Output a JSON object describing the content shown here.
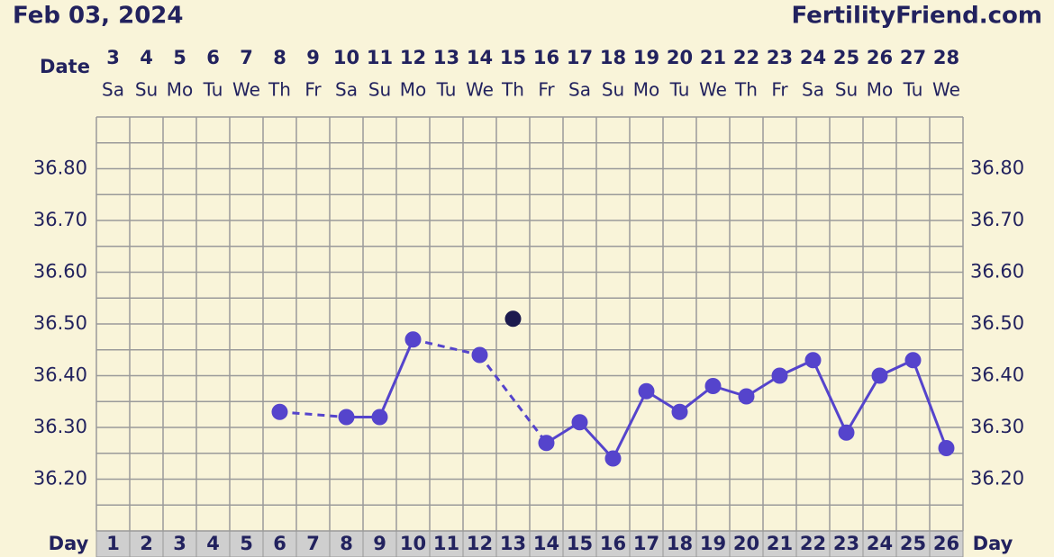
{
  "header": {
    "date": "Feb 03, 2024",
    "site": "FertilityFriend.com"
  },
  "chart_data": {
    "type": "line",
    "x_label": "Day",
    "date_label": "Date",
    "x": [
      1,
      2,
      3,
      4,
      5,
      6,
      7,
      8,
      9,
      10,
      11,
      12,
      13,
      14,
      15,
      16,
      17,
      18,
      19,
      20,
      21,
      22,
      23,
      24,
      25,
      26
    ],
    "dates": [
      3,
      4,
      5,
      6,
      7,
      8,
      9,
      10,
      11,
      12,
      13,
      14,
      15,
      16,
      17,
      18,
      19,
      20,
      21,
      22,
      23,
      24,
      25,
      26,
      27,
      28
    ],
    "weekdays": [
      "Sa",
      "Su",
      "Mo",
      "Tu",
      "We",
      "Th",
      "Fr",
      "Sa",
      "Su",
      "Mo",
      "Tu",
      "We",
      "Th",
      "Fr",
      "Sa",
      "Su",
      "Mo",
      "Tu",
      "We",
      "Th",
      "Fr",
      "Sa",
      "Su",
      "Mo",
      "Tu",
      "We"
    ],
    "xlim": [
      0.5,
      26.5
    ],
    "ylim": [
      36.1,
      36.9
    ],
    "yticks": [
      {
        "value": 36.2,
        "label": "36.20"
      },
      {
        "value": 36.3,
        "label": "36.30"
      },
      {
        "value": 36.4,
        "label": "36.40"
      },
      {
        "value": 36.5,
        "label": "36.50"
      },
      {
        "value": 36.6,
        "label": "36.60"
      },
      {
        "value": 36.7,
        "label": "36.70"
      },
      {
        "value": 36.8,
        "label": "36.80"
      }
    ],
    "grid": true,
    "series": [
      {
        "color": "#5544cc",
        "line": true,
        "values": [
          null,
          null,
          null,
          null,
          null,
          36.33,
          null,
          36.32,
          36.32,
          36.47,
          null,
          36.44,
          null,
          36.27,
          36.31,
          36.24,
          36.37,
          36.33,
          36.38,
          36.36,
          36.4,
          36.43,
          36.29,
          36.4,
          36.43,
          36.26
        ]
      },
      {
        "color": "#1c1a4e",
        "line": false,
        "values": [
          null,
          null,
          null,
          null,
          null,
          null,
          null,
          null,
          null,
          null,
          null,
          null,
          36.51,
          null,
          null,
          null,
          null,
          null,
          null,
          null,
          null,
          null,
          null,
          null,
          null,
          null
        ]
      }
    ]
  }
}
